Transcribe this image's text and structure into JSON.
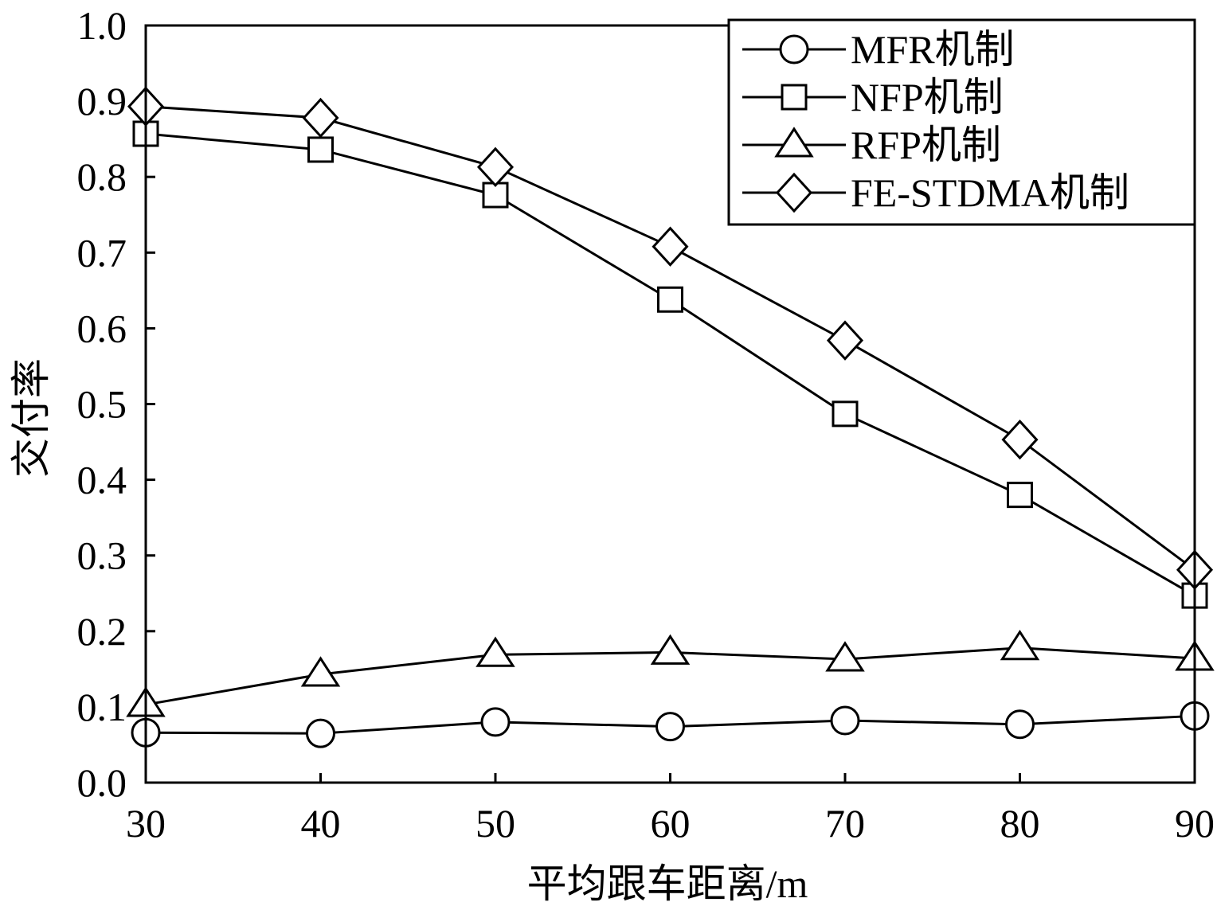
{
  "chart_data": {
    "type": "line",
    "title": "",
    "xlabel": "平均跟车距离/m",
    "ylabel": "交付率",
    "x": [
      30,
      40,
      50,
      60,
      70,
      80,
      90
    ],
    "xlim": [
      30,
      90
    ],
    "ylim": [
      0.0,
      1.0
    ],
    "xticks": [
      "30",
      "40",
      "50",
      "60",
      "70",
      "80",
      "90"
    ],
    "yticks": [
      "0.0",
      "0.1",
      "0.2",
      "0.3",
      "0.4",
      "0.5",
      "0.6",
      "0.7",
      "0.8",
      "0.9",
      "1.0"
    ],
    "grid": false,
    "legend_position": "top-right",
    "series": [
      {
        "name": "MFR机制",
        "marker": "circle",
        "values": [
          0.066,
          0.065,
          0.08,
          0.074,
          0.082,
          0.077,
          0.088
        ]
      },
      {
        "name": "NFP机制",
        "marker": "square",
        "values": [
          0.857,
          0.836,
          0.776,
          0.638,
          0.487,
          0.38,
          0.247
        ]
      },
      {
        "name": "RFP机制",
        "marker": "triangle",
        "values": [
          0.103,
          0.143,
          0.169,
          0.172,
          0.163,
          0.178,
          0.164
        ]
      },
      {
        "name": "FE-STDMA机制",
        "marker": "diamond",
        "values": [
          0.893,
          0.878,
          0.813,
          0.708,
          0.584,
          0.453,
          0.281
        ]
      }
    ]
  }
}
